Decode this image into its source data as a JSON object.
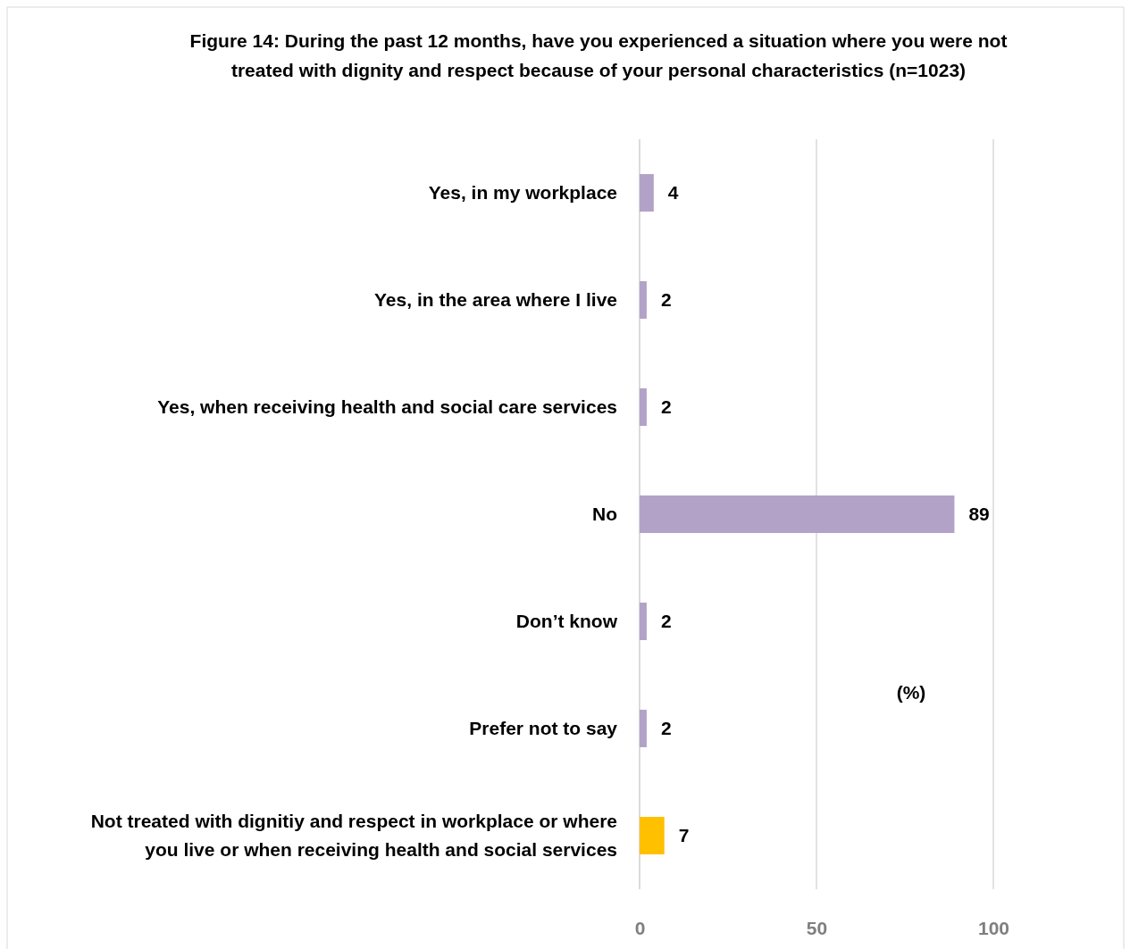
{
  "chart_data": {
    "type": "bar",
    "orientation": "horizontal",
    "title": "Figure 14: During the past 12 months, have you experienced a situation where you were not treated with dignity and respect because of your personal characteristics (n=1023)",
    "categories": [
      "Yes, in my workplace",
      "Yes, in the area where I live",
      "Yes, when receiving health and social care services",
      "No",
      "Don’t know",
      "Prefer not to say",
      "Not treated with dignitiy and respect in workplace or where you live or when receiving health and social services"
    ],
    "values": [
      4,
      2,
      2,
      89,
      2,
      2,
      7
    ],
    "colors": [
      "#b3a2c7",
      "#b3a2c7",
      "#b3a2c7",
      "#b3a2c7",
      "#b3a2c7",
      "#b3a2c7",
      "#ffc000"
    ],
    "xlim": [
      0,
      100
    ],
    "xticks": [
      0,
      50,
      100
    ],
    "grid": "x",
    "data_labels": true,
    "annotations": [
      "(%)"
    ]
  }
}
